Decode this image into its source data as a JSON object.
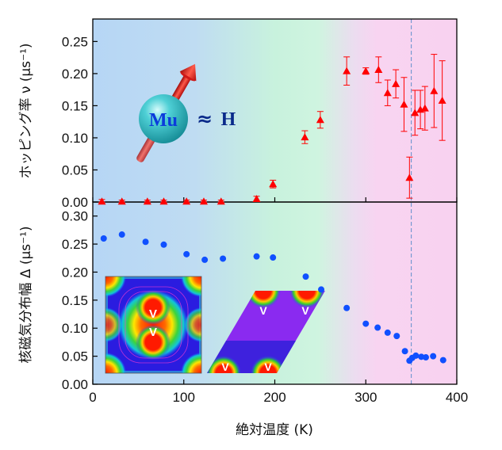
{
  "chart_data": [
    {
      "type": "scatter",
      "panel": "top",
      "ylabel": "ホッピング率 ν (μs⁻¹)",
      "ylim": [
        0,
        0.285
      ],
      "yticks": [
        "0.00",
        "0.05",
        "0.10",
        "0.15",
        "0.20",
        "0.25"
      ],
      "marker": "triangle",
      "color": "#ff0000",
      "points": [
        {
          "x": 10,
          "y": 0.001,
          "err": 0.003
        },
        {
          "x": 32,
          "y": 0.001,
          "err": 0.002
        },
        {
          "x": 60,
          "y": 0.001,
          "err": 0.002
        },
        {
          "x": 78,
          "y": 0.001,
          "err": 0.002
        },
        {
          "x": 103,
          "y": 0.001,
          "err": 0.002
        },
        {
          "x": 122,
          "y": 0.001,
          "err": 0.002
        },
        {
          "x": 141,
          "y": 0.001,
          "err": 0.002
        },
        {
          "x": 180,
          "y": 0.005,
          "err": 0.004
        },
        {
          "x": 198,
          "y": 0.028,
          "err": 0.006
        },
        {
          "x": 233,
          "y": 0.101,
          "err": 0.01
        },
        {
          "x": 250,
          "y": 0.128,
          "err": 0.013
        },
        {
          "x": 279,
          "y": 0.204,
          "err": 0.022
        },
        {
          "x": 300,
          "y": 0.204,
          "err": 0.005
        },
        {
          "x": 314,
          "y": 0.206,
          "err": 0.02
        },
        {
          "x": 324,
          "y": 0.17,
          "err": 0.02
        },
        {
          "x": 333,
          "y": 0.184,
          "err": 0.022
        },
        {
          "x": 342,
          "y": 0.152,
          "err": 0.042
        },
        {
          "x": 348,
          "y": 0.038,
          "err": 0.032
        },
        {
          "x": 354,
          "y": 0.139,
          "err": 0.035
        },
        {
          "x": 360,
          "y": 0.144,
          "err": 0.03
        },
        {
          "x": 365,
          "y": 0.146,
          "err": 0.034
        },
        {
          "x": 375,
          "y": 0.173,
          "err": 0.057
        },
        {
          "x": 384,
          "y": 0.158,
          "err": 0.062
        }
      ]
    },
    {
      "type": "scatter",
      "panel": "bottom",
      "ylabel": "核磁気分布幅 Δ (μs⁻¹)",
      "xlabel": "絶対温度 (K)",
      "xlim": [
        0,
        400
      ],
      "xticks": [
        "0",
        "100",
        "200",
        "300",
        "400"
      ],
      "ylim": [
        0,
        0.325
      ],
      "yticks": [
        "0.00",
        "0.05",
        "0.10",
        "0.15",
        "0.20",
        "0.25",
        "0.30"
      ],
      "marker": "circle",
      "color": "#1050ff",
      "points": [
        {
          "x": 12,
          "y": 0.26
        },
        {
          "x": 32,
          "y": 0.267
        },
        {
          "x": 58,
          "y": 0.254
        },
        {
          "x": 78,
          "y": 0.249
        },
        {
          "x": 103,
          "y": 0.232
        },
        {
          "x": 123,
          "y": 0.222
        },
        {
          "x": 143,
          "y": 0.224
        },
        {
          "x": 180,
          "y": 0.228
        },
        {
          "x": 198,
          "y": 0.226
        },
        {
          "x": 234,
          "y": 0.192
        },
        {
          "x": 251,
          "y": 0.169
        },
        {
          "x": 279,
          "y": 0.136
        },
        {
          "x": 300,
          "y": 0.108
        },
        {
          "x": 313,
          "y": 0.101
        },
        {
          "x": 324,
          "y": 0.092
        },
        {
          "x": 334,
          "y": 0.086
        },
        {
          "x": 343,
          "y": 0.059
        },
        {
          "x": 348,
          "y": 0.042
        },
        {
          "x": 351,
          "y": 0.047
        },
        {
          "x": 355,
          "y": 0.051
        },
        {
          "x": 361,
          "y": 0.049
        },
        {
          "x": 366,
          "y": 0.048
        },
        {
          "x": 374,
          "y": 0.05
        },
        {
          "x": 385,
          "y": 0.043
        }
      ]
    }
  ],
  "transition_line_x": 350,
  "inset": {
    "mu_label": "Mu",
    "approx_label": "≈",
    "h_label": "H",
    "vacancy_label": "V"
  },
  "colors": {
    "background_blue": "#b8d8f4",
    "background_green": "#c9f2dc",
    "background_pink": "#f8d4f0",
    "mu_sphere": "#2ebfc7",
    "mu_text": "#0b3bdb",
    "h_text": "#0a2a8a",
    "arrow": "#e0201c",
    "dashed_line": "#6a9ad0"
  }
}
